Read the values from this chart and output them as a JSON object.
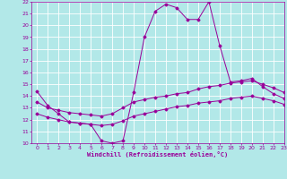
{
  "xlabel": "Windchill (Refroidissement éolien,°C)",
  "xlim": [
    -0.5,
    23
  ],
  "ylim": [
    10,
    22
  ],
  "yticks": [
    10,
    11,
    12,
    13,
    14,
    15,
    16,
    17,
    18,
    19,
    20,
    21,
    22
  ],
  "xticks": [
    0,
    1,
    2,
    3,
    4,
    5,
    6,
    7,
    8,
    9,
    10,
    11,
    12,
    13,
    14,
    15,
    16,
    17,
    18,
    19,
    20,
    21,
    22,
    23
  ],
  "bg_color": "#b2e8e8",
  "line_color": "#990099",
  "grid_color": "#ffffff",
  "series1_x": [
    0,
    1,
    2,
    3,
    4,
    5,
    6,
    7,
    8,
    9,
    10,
    11,
    12,
    13,
    14,
    15,
    16,
    17,
    18,
    19,
    20,
    21,
    22,
    23
  ],
  "series1_y": [
    14.4,
    13.2,
    12.5,
    11.8,
    11.7,
    11.6,
    10.2,
    10.0,
    10.2,
    14.3,
    19.0,
    21.2,
    21.8,
    21.5,
    20.5,
    20.5,
    22.0,
    18.3,
    15.2,
    15.3,
    15.5,
    14.8,
    14.2,
    13.8
  ],
  "series2_x": [
    0,
    1,
    2,
    3,
    4,
    5,
    6,
    7,
    8,
    9,
    10,
    11,
    12,
    13,
    14,
    15,
    16,
    17,
    18,
    19,
    20,
    21,
    22,
    23
  ],
  "series2_y": [
    13.5,
    13.0,
    12.8,
    12.6,
    12.5,
    12.4,
    12.3,
    12.5,
    13.0,
    13.5,
    13.7,
    13.9,
    14.0,
    14.2,
    14.3,
    14.6,
    14.8,
    14.9,
    15.1,
    15.2,
    15.3,
    15.0,
    14.7,
    14.3
  ],
  "series3_x": [
    0,
    1,
    2,
    3,
    4,
    5,
    6,
    7,
    8,
    9,
    10,
    11,
    12,
    13,
    14,
    15,
    16,
    17,
    18,
    19,
    20,
    21,
    22,
    23
  ],
  "series3_y": [
    12.5,
    12.2,
    12.0,
    11.8,
    11.7,
    11.6,
    11.5,
    11.6,
    11.9,
    12.3,
    12.5,
    12.7,
    12.9,
    13.1,
    13.2,
    13.4,
    13.5,
    13.6,
    13.8,
    13.9,
    14.0,
    13.8,
    13.6,
    13.3
  ]
}
